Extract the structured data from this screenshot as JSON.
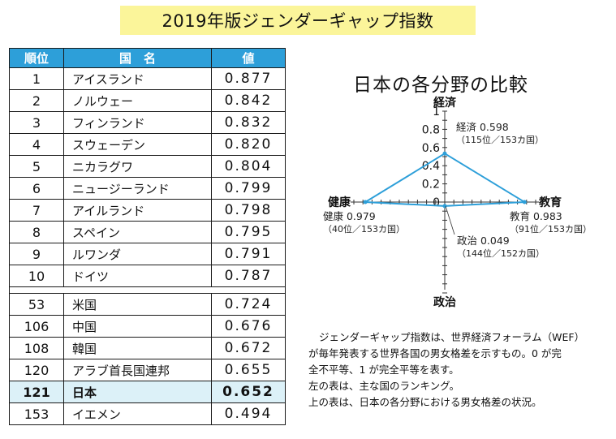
{
  "title": "2019年版ジェンダーギャップ指数",
  "table": {
    "headers": {
      "rank": "順位",
      "country": "国　名",
      "value": "値"
    },
    "top": [
      {
        "rank": "1",
        "country": "アイスランド",
        "value": "0.877"
      },
      {
        "rank": "2",
        "country": "ノルウェー",
        "value": "0.842"
      },
      {
        "rank": "3",
        "country": "フィンランド",
        "value": "0.832"
      },
      {
        "rank": "4",
        "country": "スウェーデン",
        "value": "0.820"
      },
      {
        "rank": "5",
        "country": "ニカラグワ",
        "value": "0.804"
      },
      {
        "rank": "6",
        "country": "ニュージーランド",
        "value": "0.799"
      },
      {
        "rank": "7",
        "country": "アイルランド",
        "value": "0.798"
      },
      {
        "rank": "8",
        "country": "スペイン",
        "value": "0.795"
      },
      {
        "rank": "9",
        "country": "ルワンダ",
        "value": "0.791"
      },
      {
        "rank": "10",
        "country": "ドイツ",
        "value": "0.787"
      }
    ],
    "others": [
      {
        "rank": "53",
        "country": "米国",
        "value": "0.724"
      },
      {
        "rank": "106",
        "country": "中国",
        "value": "0.676"
      },
      {
        "rank": "108",
        "country": "韓国",
        "value": "0.672"
      },
      {
        "rank": "120",
        "country": "アラブ首長国連邦",
        "value": "0.655"
      },
      {
        "rank": "121",
        "country": "日本",
        "value": "0.652",
        "highlight": true
      },
      {
        "rank": "153",
        "country": "イエメン",
        "value": "0.494"
      }
    ]
  },
  "chart_data": {
    "type": "radar",
    "title": "日本の各分野の比較",
    "axes": [
      {
        "name": "経済",
        "direction": "up",
        "value": 0.598,
        "label": "経済 0.598",
        "sublabel": "（115位／153カ国）"
      },
      {
        "name": "教育",
        "direction": "right",
        "value": 0.983,
        "label": "教育 0.983",
        "sublabel": "（91位／153カ国）"
      },
      {
        "name": "政治",
        "direction": "down",
        "value": 0.049,
        "label": "政治 0.049",
        "sublabel": "（144位／152カ国）"
      },
      {
        "name": "健康",
        "direction": "left",
        "value": 0.979,
        "label": "健康 0.979",
        "sublabel": "（40位／153カ国）"
      }
    ],
    "range": [
      0,
      1
    ],
    "tick_labels": [
      "0",
      "0.2",
      "0.4",
      "0.6",
      "0.8",
      "1"
    ],
    "line_color": "#2d9fd9"
  },
  "description": {
    "line1": "ジェンダーギャップ指数は、世界経済フォーラム（WEF）",
    "line2": "が毎年発表する世界各国の男女格差を示すもの。0 が完",
    "line3": "全不平等、1 が完全平等を表す。",
    "line4": "左の表は、主な国のランキング。",
    "line5": "上の表は、日本の各分野における男女格差の状況。"
  }
}
